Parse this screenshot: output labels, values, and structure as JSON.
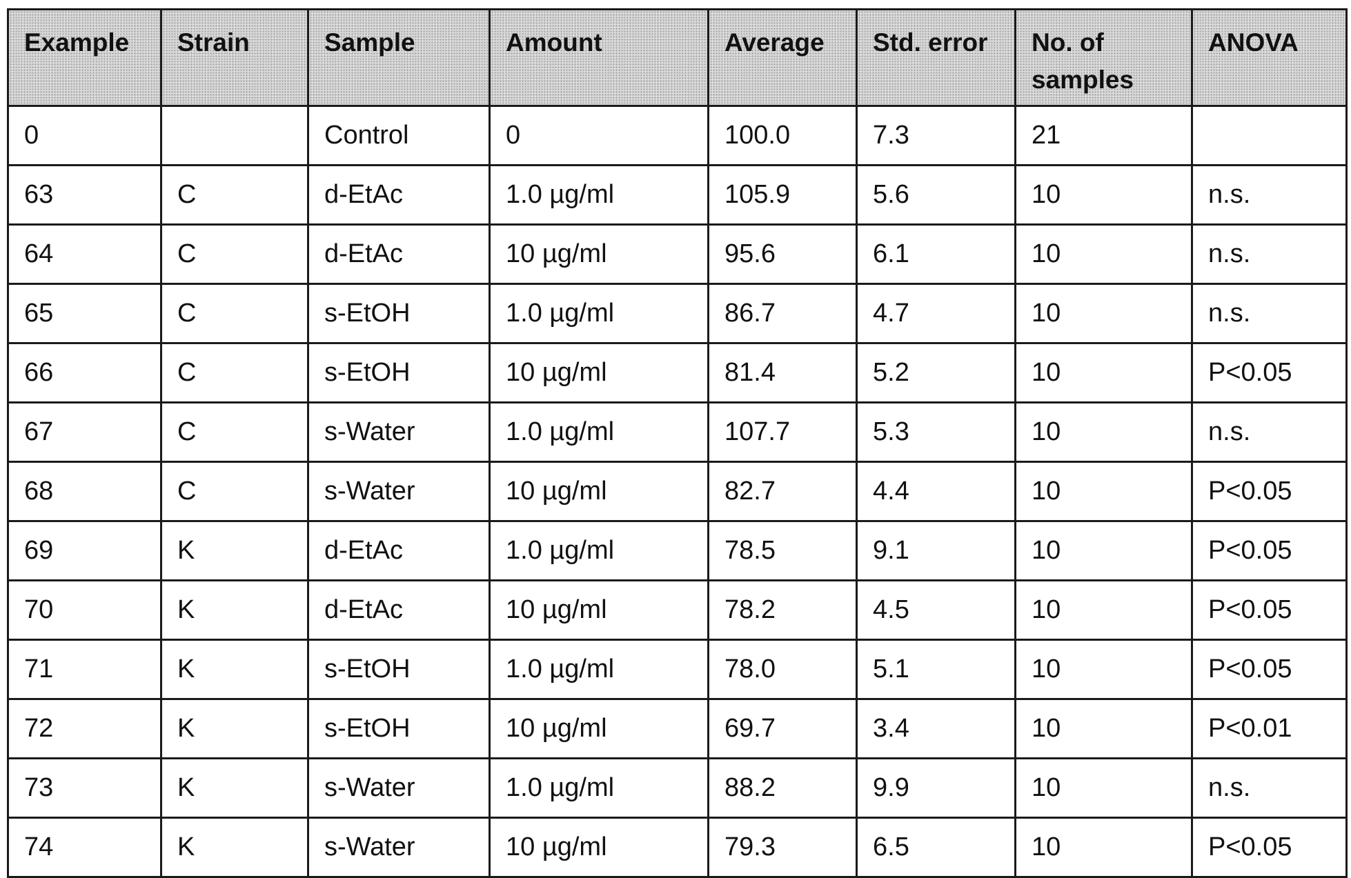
{
  "table": {
    "headers": [
      "Example",
      "Strain",
      "Sample",
      "Amount",
      "Average",
      "Std. error",
      "No. of samples",
      "ANOVA"
    ],
    "rows": [
      [
        "0",
        "",
        "Control",
        "0",
        "100.0",
        "7.3",
        "21",
        ""
      ],
      [
        "63",
        "C",
        "d-EtAc",
        "1.0 µg/ml",
        "105.9",
        "5.6",
        "10",
        "n.s."
      ],
      [
        "64",
        "C",
        "d-EtAc",
        "10 µg/ml",
        "95.6",
        "6.1",
        "10",
        "n.s."
      ],
      [
        "65",
        "C",
        "s-EtOH",
        "1.0 µg/ml",
        "86.7",
        "4.7",
        "10",
        "n.s."
      ],
      [
        "66",
        "C",
        "s-EtOH",
        "10 µg/ml",
        "81.4",
        "5.2",
        "10",
        "P<0.05"
      ],
      [
        "67",
        "C",
        "s-Water",
        "1.0 µg/ml",
        "107.7",
        "5.3",
        "10",
        "n.s."
      ],
      [
        "68",
        "C",
        "s-Water",
        "10 µg/ml",
        "82.7",
        "4.4",
        "10",
        "P<0.05"
      ],
      [
        "69",
        "K",
        "d-EtAc",
        "1.0 µg/ml",
        "78.5",
        "9.1",
        "10",
        "P<0.05"
      ],
      [
        "70",
        "K",
        "d-EtAc",
        "10 µg/ml",
        "78.2",
        "4.5",
        "10",
        "P<0.05"
      ],
      [
        "71",
        "K",
        "s-EtOH",
        "1.0 µg/ml",
        "78.0",
        "5.1",
        "10",
        "P<0.05"
      ],
      [
        "72",
        "K",
        "s-EtOH",
        "10 µg/ml",
        "69.7",
        "3.4",
        "10",
        "P<0.01"
      ],
      [
        "73",
        "K",
        "s-Water",
        "1.0 µg/ml",
        "88.2",
        "9.9",
        "10",
        "n.s."
      ],
      [
        "74",
        "K",
        "s-Water",
        "10 µg/ml",
        "79.3",
        "6.5",
        "10",
        "P<0.05"
      ]
    ]
  },
  "colors": {
    "header_background": "#d6d6d6",
    "border": "#1a1a1a",
    "text": "#111111"
  }
}
